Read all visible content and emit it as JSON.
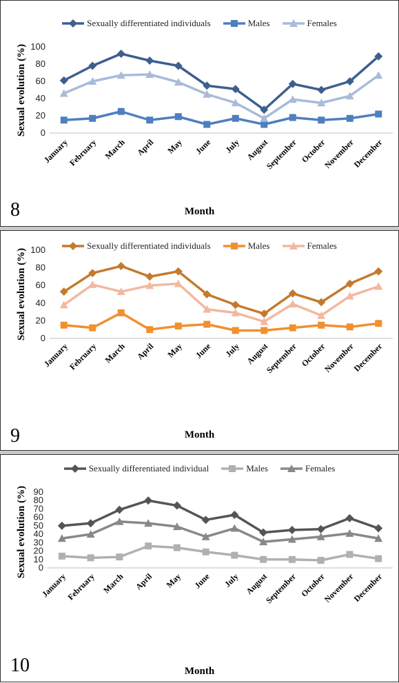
{
  "chart_data": [
    {
      "type": "line",
      "panel_label": "8",
      "categories": [
        "January",
        "February",
        "March",
        "April",
        "May",
        "June",
        "July",
        "August",
        "September",
        "October",
        "November",
        "December"
      ],
      "series": [
        {
          "name": "Sexually differentiated individuals",
          "values": [
            61,
            78,
            92,
            84,
            78,
            55,
            51,
            27,
            57,
            50,
            60,
            89
          ],
          "color": "#3d5f8f",
          "marker": "diamond"
        },
        {
          "name": "Males",
          "values": [
            15,
            17,
            25,
            15,
            19,
            10,
            17,
            10,
            18,
            15,
            17,
            22
          ],
          "color": "#4e7fbf",
          "marker": "square"
        },
        {
          "name": "Females",
          "values": [
            46,
            60,
            67,
            68,
            59,
            45,
            35,
            17,
            39,
            35,
            43,
            67
          ],
          "color": "#a9bbd9",
          "marker": "triangle"
        }
      ],
      "xlabel": "Month",
      "ylabel": "Sexual evolution (%)",
      "ylim": [
        0,
        100
      ],
      "yticks": [
        0,
        20,
        40,
        60,
        80,
        100
      ],
      "grid": false,
      "legend_position": "top"
    },
    {
      "type": "line",
      "panel_label": "9",
      "categories": [
        "January",
        "February",
        "March",
        "April",
        "May",
        "June",
        "July",
        "August",
        "September",
        "October",
        "November",
        "December"
      ],
      "series": [
        {
          "name": "Sexually differentiated individuals",
          "values": [
            53,
            74,
            82,
            70,
            76,
            50,
            38,
            28,
            51,
            41,
            62,
            76
          ],
          "color": "#c47a2d",
          "marker": "diamond"
        },
        {
          "name": "Males",
          "values": [
            15,
            12,
            29,
            10,
            14,
            16,
            9,
            9,
            12,
            15,
            13,
            17
          ],
          "color": "#f0902f",
          "marker": "square"
        },
        {
          "name": "Females",
          "values": [
            38,
            61,
            53,
            60,
            62,
            33,
            29,
            19,
            39,
            26,
            48,
            59
          ],
          "color": "#f2b8a0",
          "marker": "triangle"
        }
      ],
      "xlabel": "Month",
      "ylabel": "Sexual evolution (%)",
      "ylim": [
        0,
        100
      ],
      "yticks": [
        0,
        20,
        40,
        60,
        80,
        100
      ],
      "grid": false,
      "legend_position": "top"
    },
    {
      "type": "line",
      "panel_label": "10",
      "categories": [
        "January",
        "February",
        "March",
        "April",
        "May",
        "June",
        "July",
        "August",
        "September",
        "October",
        "November",
        "December"
      ],
      "series": [
        {
          "name": "Sexually differentiated individual",
          "values": [
            50,
            53,
            69,
            80,
            74,
            57,
            63,
            42,
            45,
            46,
            59,
            47
          ],
          "color": "#555555",
          "marker": "diamond"
        },
        {
          "name": "Males",
          "values": [
            14,
            12,
            13,
            26,
            24,
            19,
            15,
            10,
            10,
            9,
            16,
            11
          ],
          "color": "#b0b0b0",
          "marker": "square"
        },
        {
          "name": "Females",
          "values": [
            35,
            40,
            55,
            53,
            49,
            37,
            47,
            31,
            34,
            37,
            41,
            35
          ],
          "color": "#888888",
          "marker": "triangle"
        }
      ],
      "xlabel": "Month",
      "ylabel": "Sexual evolution (%)",
      "ylim": [
        0,
        90
      ],
      "yticks": [
        0,
        10,
        20,
        30,
        40,
        50,
        60,
        70,
        80,
        90
      ],
      "grid": false,
      "legend_position": "top"
    }
  ]
}
